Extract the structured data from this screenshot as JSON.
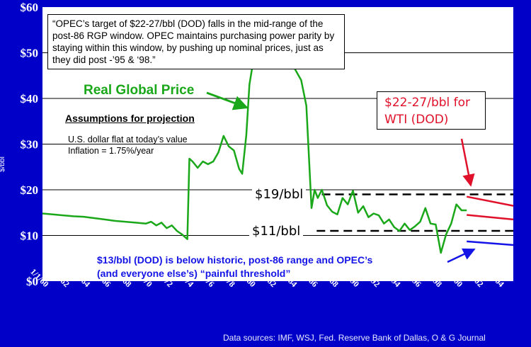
{
  "chart_data": {
    "type": "line",
    "ylabel": "$/bbl",
    "ylim": [
      0,
      60
    ],
    "y_ticks": [
      "$0",
      "$10",
      "$20",
      "$30",
      "$40",
      "$50",
      "$60"
    ],
    "y_tick_values": [
      0,
      10,
      20,
      30,
      40,
      50,
      60
    ],
    "xlim": [
      1960,
      2005.5
    ],
    "x_tick_labels": [
      "1/1/60",
      "1/1/62",
      "1/1/64",
      "1/1/66",
      "1/1/68",
      "1/1/70",
      "1/1/72",
      "1/1/74",
      "1/1/76",
      "1/1/78",
      "1/1/80",
      "1/1/82",
      "1/1/84",
      "1/1/86",
      "1/1/88",
      "1/1/90",
      "1/1/92",
      "1/1/94",
      "1/1/96",
      "1/1/98",
      "1/1/00",
      "1/1/02",
      "1/1/04"
    ],
    "x_tick_values": [
      1960,
      1962,
      1964,
      1966,
      1968,
      1970,
      1972,
      1974,
      1976,
      1978,
      1980,
      1982,
      1984,
      1986,
      1988,
      1990,
      1992,
      1994,
      1996,
      1998,
      2000,
      2002,
      2004
    ],
    "grid": "horizontal",
    "series": [
      {
        "name": "Real Global Price",
        "color": "#1aa81a",
        "x": [
          1960,
          1961,
          1962,
          1963,
          1964,
          1965,
          1966,
          1967,
          1968,
          1969,
          1970,
          1970.5,
          1971,
          1971.5,
          1972,
          1972.5,
          1973,
          1973.5,
          1974,
          1974.2,
          1974.5,
          1975,
          1975.5,
          1976,
          1976.5,
          1977,
          1977.5,
          1978,
          1978.5,
          1979,
          1979.3,
          1979.7,
          1980,
          1980.5,
          1981,
          1981.5,
          1982,
          1982.5,
          1983,
          1983.5,
          1984,
          1984.5,
          1985,
          1985.5,
          1986,
          1986.3,
          1986.6,
          1987,
          1987.5,
          1988,
          1988.5,
          1989,
          1989.5,
          1990,
          1990.5,
          1991,
          1991.5,
          1992,
          1992.5,
          1993,
          1993.5,
          1994,
          1994.5,
          1995,
          1995.5,
          1996,
          1996.5,
          1997,
          1997.5,
          1998,
          1998.5,
          1999,
          1999.5,
          2000,
          2000.5,
          2001
        ],
        "y": [
          14.8,
          14.6,
          14.4,
          14.2,
          14.1,
          13.8,
          13.5,
          13.2,
          13.0,
          12.8,
          12.6,
          13.0,
          12.2,
          12.8,
          11.6,
          12.2,
          11.0,
          10.2,
          9.2,
          26.8,
          26.2,
          24.8,
          26.2,
          25.6,
          26.2,
          28.2,
          31.8,
          29.5,
          28.6,
          24.6,
          23.5,
          32.0,
          43.0,
          50.0,
          56.0,
          54.0,
          52.0,
          49.0,
          50.0,
          47.6,
          48.0,
          46.0,
          44.0,
          38.4,
          16.0,
          20.0,
          18.2,
          20.0,
          16.6,
          15.2,
          14.6,
          18.2,
          16.8,
          19.8,
          15.0,
          16.4,
          14.0,
          14.8,
          14.4,
          12.6,
          13.5,
          11.8,
          11.0,
          12.6,
          11.2,
          12.0,
          13.0,
          16.0,
          12.6,
          12.4,
          6.2,
          10.2,
          12.6,
          16.8,
          15.5,
          15.5
        ]
      },
      {
        "name": "",
        "color": "#e0102a",
        "x": [
          2001,
          2005.5
        ],
        "y": [
          18.5,
          16.5
        ]
      },
      {
        "name": "",
        "color": "#e0102a",
        "x": [
          2001,
          2005.5
        ],
        "y": [
          14.5,
          13.5
        ]
      },
      {
        "name": "",
        "color": "#1414e6",
        "x": [
          2001,
          2005.5
        ],
        "y": [
          8.7,
          7.9
        ]
      }
    ],
    "reference_lines": [
      {
        "label": "$19/bbl",
        "y": 19,
        "x_start": 1987
      },
      {
        "label": "$11/bbl",
        "y": 11,
        "x_start": 1986.5
      }
    ],
    "annotations": {
      "quote": "“OPEC’s target of $22-27/bbl (DOD) falls in the mid-range of the post-86 RGP window. OPEC maintains purchasing power parity by staying within this window, by pushing up nominal prices, just as they did post -’95 & ‘98.”",
      "real_price_label": "Real Global Price",
      "assumptions_title": "Assumptions for projection",
      "assumption_1": "U.S. dollar flat at today’s value",
      "assumption_2": "Inflation = 1.75%/year",
      "target_line_1": "$22-27/bbl for",
      "target_line_2": "WTI (DOD)",
      "below_line_1": "$13/bbl (DOD) is below historic, post-86 range and OPEC’s",
      "below_line_2": "(and everyone else’s) “painful threshold”",
      "source": "Data sources: IMF, WSJ, Fed. Reserve Bank of Dallas, O & G Journal"
    }
  }
}
